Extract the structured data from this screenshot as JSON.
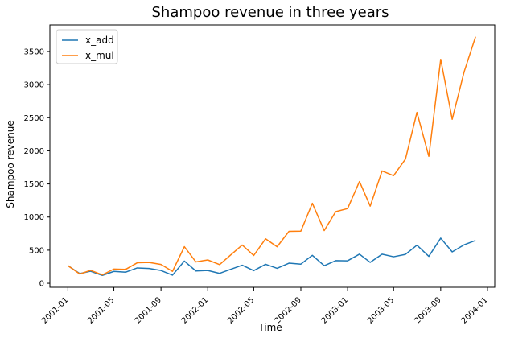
{
  "chart_data": {
    "type": "line",
    "title": "Shampoo revenue in three years",
    "xlabel": "Time",
    "ylabel": "Shampoo revenue",
    "x": [
      "2001-01",
      "2001-02",
      "2001-03",
      "2001-04",
      "2001-05",
      "2001-06",
      "2001-07",
      "2001-08",
      "2001-09",
      "2001-10",
      "2001-11",
      "2001-12",
      "2002-01",
      "2002-02",
      "2002-03",
      "2002-04",
      "2002-05",
      "2002-06",
      "2002-07",
      "2002-08",
      "2002-09",
      "2002-10",
      "2002-11",
      "2002-12",
      "2003-01",
      "2003-02",
      "2003-03",
      "2003-04",
      "2003-05",
      "2003-06",
      "2003-07",
      "2003-08",
      "2003-09",
      "2003-10",
      "2003-11",
      "2003-12"
    ],
    "xticks": [
      "2001-01",
      "2001-05",
      "2001-09",
      "2002-01",
      "2002-05",
      "2002-09",
      "2003-01",
      "2003-05",
      "2003-09",
      "2004-01"
    ],
    "xlim": [
      "2000-11-15",
      "2004-01-20"
    ],
    "yticks": [
      0,
      500,
      1000,
      1500,
      2000,
      2500,
      3000,
      3500
    ],
    "ylim": [
      -60,
      3900
    ],
    "grid": false,
    "legend_position": "top-left",
    "series": [
      {
        "name": "x_add",
        "color": "#1f77b4",
        "values": [
          266,
          146,
          183,
          119,
          180,
          168,
          232,
          224,
          193,
          123,
          336,
          186,
          194,
          150,
          210,
          273,
          191,
          287,
          226,
          304,
          290,
          422,
          265,
          342,
          340,
          440,
          316,
          439,
          401,
          437,
          575,
          407,
          682,
          475,
          581,
          647
        ]
      },
      {
        "name": "x_mul",
        "color": "#ff7f0e",
        "values": [
          266,
          140,
          196,
          127,
          215,
          211,
          310,
          315,
          285,
          180,
          553,
          323,
          353,
          282,
          423,
          578,
          420,
          672,
          552,
          784,
          788,
          1208,
          796,
          1082,
          1128,
          1536,
          1165,
          1696,
          1625,
          1875,
          2580,
          1916,
          3381,
          2476,
          3190,
          3722
        ]
      }
    ]
  }
}
